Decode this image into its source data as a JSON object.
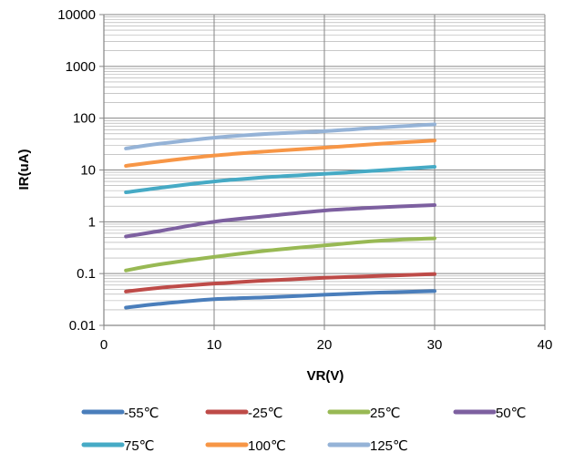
{
  "chart_data": {
    "type": "line",
    "xlabel": "VR(V)",
    "ylabel": "IR(uA)",
    "xlim": [
      0,
      40
    ],
    "ylim": [
      0.01,
      10000
    ],
    "yscale": "log",
    "x_ticks": [
      0,
      10,
      20,
      30,
      40
    ],
    "x_tick_labels": [
      "0",
      "10",
      "20",
      "30",
      "40"
    ],
    "y_ticks": [
      0.01,
      0.1,
      1,
      10,
      100,
      1000,
      10000
    ],
    "y_tick_labels": [
      "0.01",
      "0.1",
      "1",
      "10",
      "100",
      "1000",
      "10000"
    ],
    "grid": true,
    "legend_position": "bottom",
    "series": [
      {
        "name": "-55℃",
        "color": "#4a7ebb",
        "x": [
          2,
          5,
          10,
          15,
          20,
          25,
          30
        ],
        "y": [
          0.022,
          0.026,
          0.032,
          0.035,
          0.039,
          0.043,
          0.046
        ]
      },
      {
        "name": "-25℃",
        "color": "#be4b48",
        "x": [
          2,
          5,
          10,
          15,
          20,
          25,
          30
        ],
        "y": [
          0.045,
          0.053,
          0.064,
          0.074,
          0.083,
          0.09,
          0.098
        ]
      },
      {
        "name": "25℃",
        "color": "#98b954",
        "x": [
          2,
          5,
          10,
          15,
          20,
          25,
          30
        ],
        "y": [
          0.115,
          0.15,
          0.21,
          0.28,
          0.35,
          0.43,
          0.48
        ]
      },
      {
        "name": "50℃",
        "color": "#7d60a0",
        "x": [
          2,
          5,
          10,
          15,
          20,
          25,
          30
        ],
        "y": [
          0.52,
          0.66,
          1.0,
          1.3,
          1.65,
          1.9,
          2.1
        ]
      },
      {
        "name": "75℃",
        "color": "#46aac5",
        "x": [
          2,
          5,
          10,
          15,
          20,
          25,
          30
        ],
        "y": [
          3.7,
          4.5,
          6.0,
          7.3,
          8.4,
          9.8,
          11.5
        ]
      },
      {
        "name": "100℃",
        "color": "#f79646",
        "x": [
          2,
          5,
          10,
          15,
          20,
          25,
          30
        ],
        "y": [
          12,
          14.5,
          19,
          23,
          27,
          32,
          37
        ]
      },
      {
        "name": "125℃",
        "color": "#95b3d7",
        "x": [
          2,
          5,
          10,
          15,
          20,
          25,
          30
        ],
        "y": [
          26,
          32,
          42,
          50,
          56,
          66,
          76
        ]
      }
    ]
  }
}
